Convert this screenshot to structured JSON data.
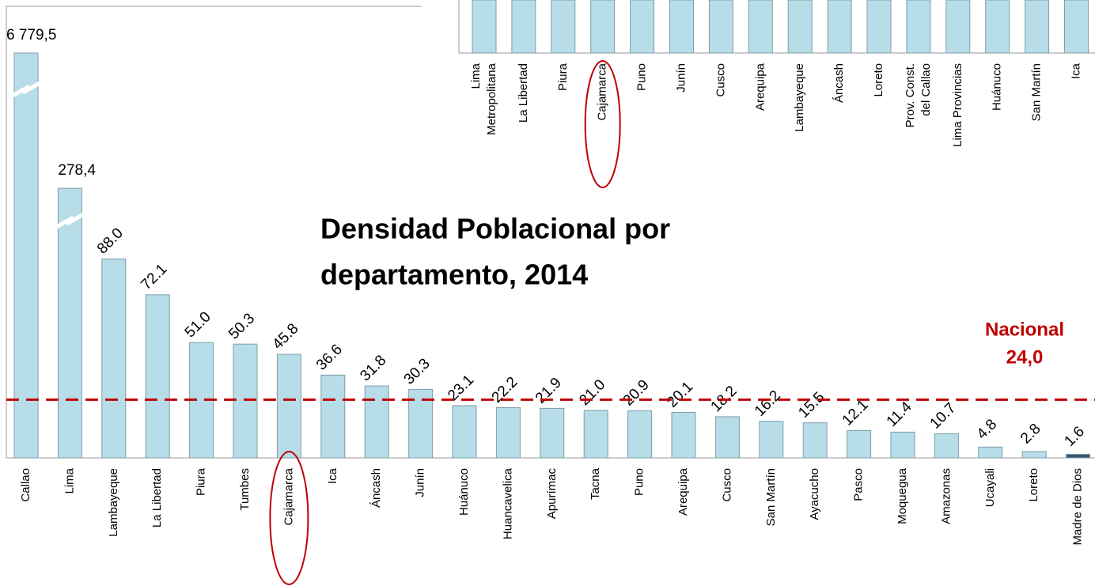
{
  "chart_data": [
    {
      "type": "bar",
      "title_lines": [
        "Densidad Poblacional por",
        "departamento, 2014"
      ],
      "categories": [
        "Callao",
        "Lima",
        "Lambayeque",
        "La Libertad",
        "Piura",
        "Tumbes",
        "Cajamarca",
        "Ica",
        "Áncash",
        "Junín",
        "Huánuco",
        "Huancavelica",
        "Apurímac",
        "Tacna",
        "Puno",
        "Arequipa",
        "Cusco",
        "San Martín",
        "Ayacucho",
        "Pasco",
        "Moquegua",
        "Amazonas",
        "Ucayali",
        "Loreto",
        "Madre de Dios"
      ],
      "values": [
        6779.5,
        278.4,
        88.0,
        72.1,
        51.0,
        50.3,
        45.8,
        36.6,
        31.8,
        30.3,
        23.1,
        22.2,
        21.9,
        21.0,
        20.9,
        20.1,
        18.2,
        16.2,
        15.5,
        12.1,
        11.4,
        10.7,
        4.8,
        2.8,
        1.6
      ],
      "value_labels": [
        "6 779,5",
        "278,4",
        "88.0",
        "72.1",
        "51.0",
        "50.3",
        "45.8",
        "36.6",
        "31.8",
        "30.3",
        "23.1",
        "22.2",
        "21.9",
        "21.0",
        "20.9",
        "20.1",
        "18.2",
        "16.2",
        "15.5",
        "12.1",
        "11.4",
        "10.7",
        "4.8",
        "2.8",
        "1.6"
      ],
      "color": "#b7dde8",
      "last_color": "#31596b",
      "ylim": [
        0,
        100
      ],
      "axis_break": true,
      "highlight_index": 6,
      "reference_line": {
        "value": 24.0,
        "label_lines": [
          "Nacional",
          "24,0"
        ],
        "color": "#c00000"
      }
    },
    {
      "type": "bar",
      "categories": [
        [
          "Lima",
          "Metropolitana"
        ],
        [
          "La Libertad"
        ],
        [
          "Piura"
        ],
        [
          "Cajamarca"
        ],
        [
          "Puno"
        ],
        [
          "Junín"
        ],
        [
          "Cusco"
        ],
        [
          "Arequipa"
        ],
        [
          "Lambayeque"
        ],
        [
          "Áncash"
        ],
        [
          "Loreto"
        ],
        [
          "Prov. Const.",
          "del Callao"
        ],
        [
          "Lima Provincias"
        ],
        [
          "Huánuco"
        ],
        [
          "San Martín"
        ],
        [
          "Ica"
        ]
      ],
      "color": "#b7dde8",
      "highlight_index": 3
    }
  ]
}
